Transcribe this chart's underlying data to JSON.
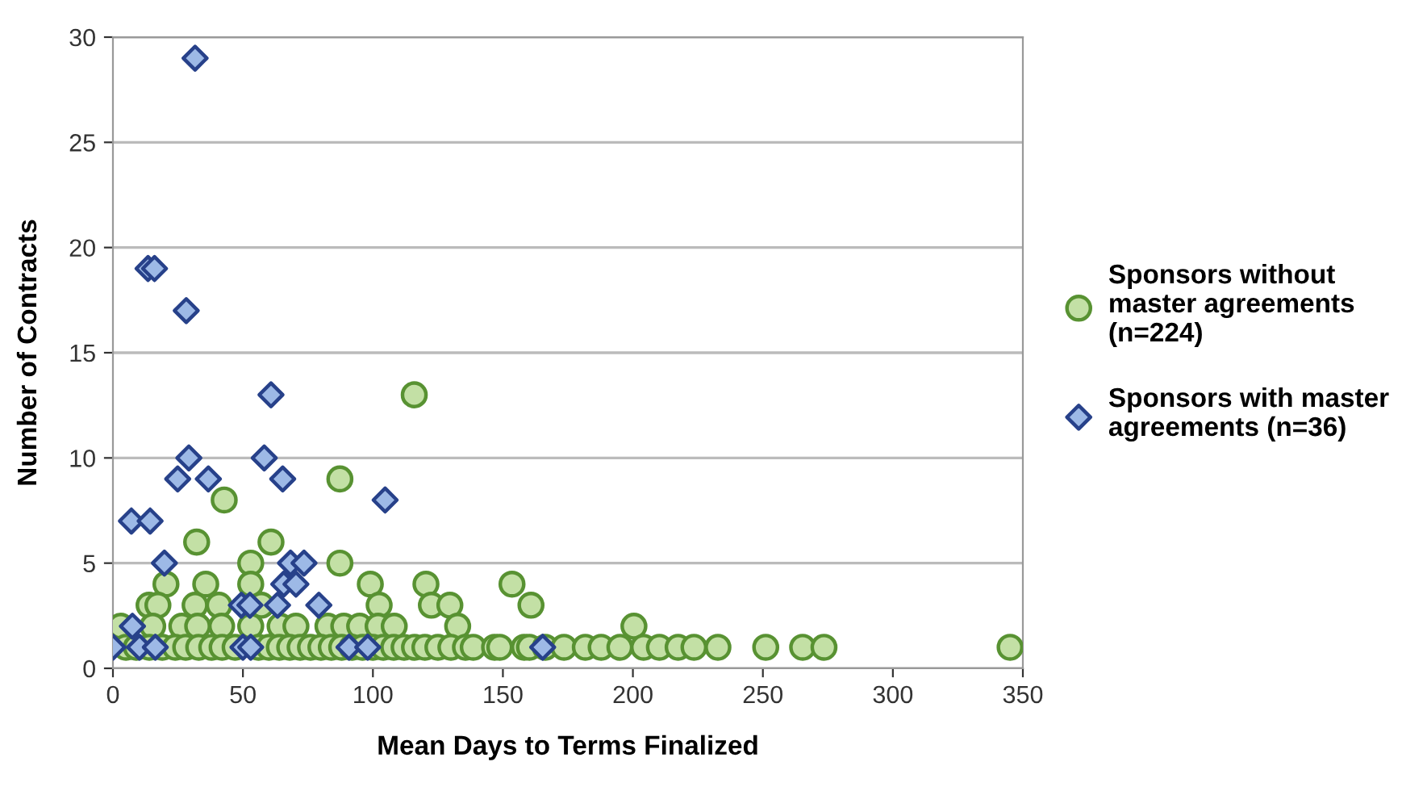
{
  "chart_data": {
    "type": "scatter",
    "xlabel": "Mean Days to Terms Finalized",
    "ylabel": "Number of Contracts",
    "xlim": [
      0,
      350
    ],
    "xticks": [
      0,
      50,
      100,
      150,
      200,
      250,
      300,
      350
    ],
    "ylim": [
      0,
      30
    ],
    "yticks": [
      0,
      5,
      10,
      15,
      20,
      25,
      30
    ],
    "grid": "y",
    "legend": "right",
    "series": [
      {
        "name": "Sponsors without\nmaster agreements\n(n=224)",
        "color": "#c3e0a5",
        "marker": "circle",
        "x": [
          115.9,
          87.3,
          42.8,
          32.2,
          60.8,
          53,
          87.3,
          20.4,
          35.7,
          53,
          99,
          120.4,
          153.5,
          13.9,
          17.3,
          31.6,
          40.8,
          57.1,
          102.4,
          122.5,
          129.6,
          160.8,
          3,
          15.3,
          26.5,
          32.6,
          41.8,
          53,
          64.3,
          70.4,
          82.7,
          88.8,
          94.9,
          102,
          108.2,
          132.6,
          200.4,
          5,
          9,
          14,
          19,
          24,
          28,
          33,
          38,
          42,
          47,
          56,
          60,
          64,
          68,
          72,
          76,
          80,
          84,
          88,
          92,
          96,
          100,
          104,
          108,
          112,
          116,
          120,
          125,
          130,
          135.6,
          138.6,
          146.8,
          148.8,
          158.2,
          160.2,
          166.3,
          173.5,
          181.7,
          187.8,
          195,
          204.1,
          210.2,
          217.4,
          223.5,
          232.7,
          251.1,
          265.3,
          273.5,
          345.1
        ],
        "values": [
          13,
          9,
          8,
          6,
          6,
          5,
          5,
          4,
          4,
          4,
          4,
          4,
          4,
          3,
          3,
          3,
          3,
          3,
          3,
          3,
          3,
          3,
          2,
          2,
          2,
          2,
          2,
          2,
          2,
          2,
          2,
          2,
          2,
          2,
          2,
          2,
          2,
          1,
          1,
          1,
          1,
          1,
          1,
          1,
          1,
          1,
          1,
          1,
          1,
          1,
          1,
          1,
          1,
          1,
          1,
          1,
          1,
          1,
          1,
          1,
          1,
          1,
          1,
          1,
          1,
          1,
          1,
          1,
          1,
          1,
          1,
          1,
          1,
          1,
          1,
          1,
          1,
          1,
          1,
          1,
          1,
          1,
          1,
          1,
          1,
          1
        ]
      },
      {
        "name": "Sponsors with master\nagreements (n=36)",
        "color": "#9db9e6",
        "marker": "diamond",
        "x": [
          31.6,
          13.5,
          16,
          28.2,
          60.8,
          29.2,
          58.2,
          24.9,
          36.7,
          65.3,
          104.7,
          7.1,
          14.3,
          19.8,
          68.3,
          73.5,
          65.7,
          70.4,
          49.4,
          52.7,
          63.3,
          79.2,
          7.5,
          0,
          10.2,
          16.3,
          50,
          53,
          90.8,
          98,
          165.3
        ],
        "values": [
          29,
          19,
          19,
          17,
          13,
          10,
          10,
          9,
          9,
          9,
          8,
          7,
          7,
          5,
          5,
          5,
          4,
          4,
          3,
          3,
          3,
          3,
          2,
          1,
          1,
          1,
          1,
          1,
          1,
          1,
          1
        ]
      }
    ]
  }
}
